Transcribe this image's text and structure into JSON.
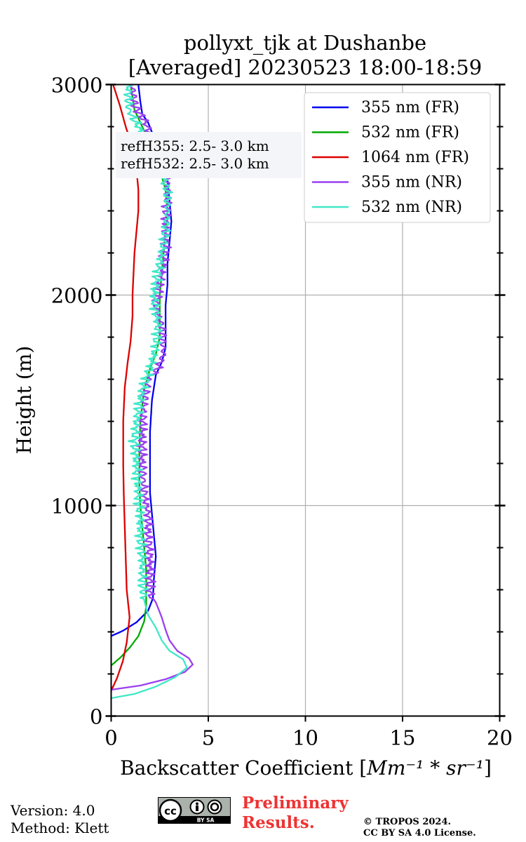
{
  "chart_data": {
    "type": "line",
    "title_line1": "pollyxt_tjk at Dushanbe",
    "title_line2": "[Averaged] 20230523 18:00-18:59",
    "xlabel_prefix": "Backscatter Coefficient [",
    "xlabel_math": "Mm⁻¹ * sr⁻¹",
    "xlabel_suffix": "]",
    "ylabel": "Height (m)",
    "xlim": [
      0,
      20
    ],
    "ylim": [
      0,
      3000
    ],
    "xticks": [
      0,
      5,
      10,
      15,
      20
    ],
    "xtick_labels": [
      "0",
      "5",
      "10",
      "15",
      "20"
    ],
    "yticks": [
      0,
      1000,
      2000,
      3000
    ],
    "ytick_labels": [
      "0",
      "1000",
      "2000",
      "3000"
    ],
    "yminor_step": 200,
    "grid": true,
    "legend_position": "top-right",
    "ref_annotation": [
      "refH355:  2.5- 3.0 km",
      "refH532:  2.5- 3.0 km"
    ],
    "series": [
      {
        "name": "355 nm (FR)",
        "color": "#0000ee",
        "noisy": false,
        "points": [
          [
            0.0,
            380
          ],
          [
            0.6,
            405
          ],
          [
            1.3,
            445
          ],
          [
            1.9,
            500
          ],
          [
            2.15,
            560
          ],
          [
            2.2,
            650
          ],
          [
            2.3,
            760
          ],
          [
            2.2,
            860
          ],
          [
            2.1,
            960
          ],
          [
            2.0,
            1060
          ],
          [
            2.0,
            1200
          ],
          [
            2.0,
            1350
          ],
          [
            2.1,
            1500
          ],
          [
            2.3,
            1620
          ],
          [
            2.6,
            1680
          ],
          [
            2.8,
            1750
          ],
          [
            2.8,
            1850
          ],
          [
            2.8,
            1950
          ],
          [
            2.9,
            2050
          ],
          [
            2.9,
            2150
          ],
          [
            3.0,
            2250
          ],
          [
            3.1,
            2350
          ],
          [
            3.0,
            2450
          ],
          [
            2.9,
            2550
          ],
          [
            2.6,
            2650
          ],
          [
            2.2,
            2750
          ],
          [
            1.9,
            2820
          ],
          [
            1.6,
            2860
          ],
          [
            1.5,
            2920
          ],
          [
            1.4,
            3000
          ]
        ]
      },
      {
        "name": "532 nm (FR)",
        "color": "#00aa00",
        "noisy": false,
        "points": [
          [
            0.0,
            240
          ],
          [
            0.5,
            280
          ],
          [
            1.0,
            330
          ],
          [
            1.4,
            380
          ],
          [
            1.7,
            450
          ],
          [
            1.8,
            520
          ],
          [
            1.8,
            600
          ],
          [
            1.8,
            700
          ],
          [
            1.7,
            800
          ],
          [
            1.6,
            900
          ],
          [
            1.5,
            1000
          ],
          [
            1.45,
            1100
          ],
          [
            1.45,
            1250
          ],
          [
            1.5,
            1400
          ],
          [
            1.7,
            1550
          ],
          [
            2.0,
            1650
          ],
          [
            2.3,
            1720
          ],
          [
            2.5,
            1800
          ],
          [
            2.5,
            1900
          ],
          [
            2.5,
            2000
          ],
          [
            2.6,
            2100
          ],
          [
            2.7,
            2200
          ],
          [
            2.8,
            2300
          ],
          [
            2.9,
            2400
          ],
          [
            2.8,
            2500
          ],
          [
            2.5,
            2600
          ],
          [
            2.1,
            2700
          ],
          [
            1.6,
            2800
          ],
          [
            1.2,
            2880
          ],
          [
            1.0,
            3000
          ]
        ]
      },
      {
        "name": "1064 nm (FR)",
        "color": "#dd0000",
        "noisy": false,
        "points": [
          [
            0.0,
            120
          ],
          [
            0.3,
            180
          ],
          [
            0.6,
            260
          ],
          [
            0.8,
            350
          ],
          [
            0.95,
            470
          ],
          [
            0.8,
            600
          ],
          [
            0.75,
            750
          ],
          [
            0.7,
            900
          ],
          [
            0.65,
            1050
          ],
          [
            0.62,
            1200
          ],
          [
            0.62,
            1400
          ],
          [
            0.7,
            1560
          ],
          [
            0.85,
            1680
          ],
          [
            1.0,
            1780
          ],
          [
            1.1,
            1900
          ],
          [
            1.1,
            2000
          ],
          [
            1.15,
            2100
          ],
          [
            1.2,
            2200
          ],
          [
            1.3,
            2300
          ],
          [
            1.4,
            2400
          ],
          [
            1.4,
            2500
          ],
          [
            1.3,
            2600
          ],
          [
            1.1,
            2700
          ],
          [
            0.75,
            2800
          ],
          [
            0.45,
            2900
          ],
          [
            0.1,
            3000
          ]
        ]
      },
      {
        "name": "355 nm (NR)",
        "color": "#9a3ff0",
        "noisy": true,
        "points": [
          [
            0.0,
            125
          ],
          [
            1.5,
            145
          ],
          [
            2.8,
            175
          ],
          [
            3.8,
            210
          ],
          [
            4.2,
            245
          ],
          [
            4.0,
            275
          ],
          [
            3.4,
            310
          ],
          [
            3.0,
            360
          ],
          [
            2.8,
            410
          ],
          [
            2.6,
            470
          ],
          [
            2.3,
            540
          ],
          [
            2.0,
            580
          ],
          [
            2.0,
            650
          ],
          [
            2.0,
            750
          ],
          [
            1.9,
            850
          ],
          [
            1.9,
            960
          ],
          [
            1.7,
            1060
          ],
          [
            1.6,
            1200
          ],
          [
            1.6,
            1350
          ],
          [
            1.7,
            1500
          ],
          [
            1.9,
            1600
          ],
          [
            2.4,
            1650
          ],
          [
            2.7,
            1720
          ],
          [
            2.6,
            1850
          ],
          [
            2.3,
            1950
          ],
          [
            2.5,
            2050
          ],
          [
            2.7,
            2150
          ],
          [
            2.8,
            2250
          ],
          [
            2.8,
            2350
          ],
          [
            2.9,
            2450
          ],
          [
            2.9,
            2550
          ],
          [
            2.5,
            2650
          ],
          [
            2.1,
            2750
          ],
          [
            1.7,
            2830
          ],
          [
            1.2,
            2900
          ],
          [
            1.1,
            3000
          ]
        ]
      },
      {
        "name": "532 nm (NR)",
        "color": "#40e8c8",
        "noisy": true,
        "points": [
          [
            0.0,
            85
          ],
          [
            1.2,
            105
          ],
          [
            2.3,
            140
          ],
          [
            3.3,
            185
          ],
          [
            3.9,
            230
          ],
          [
            3.7,
            270
          ],
          [
            3.0,
            310
          ],
          [
            2.6,
            360
          ],
          [
            2.3,
            420
          ],
          [
            1.9,
            480
          ],
          [
            1.7,
            550
          ],
          [
            1.6,
            650
          ],
          [
            1.6,
            750
          ],
          [
            1.5,
            850
          ],
          [
            1.5,
            950
          ],
          [
            1.4,
            1050
          ],
          [
            1.3,
            1200
          ],
          [
            1.2,
            1300
          ],
          [
            1.3,
            1400
          ],
          [
            1.6,
            1550
          ],
          [
            2.0,
            1650
          ],
          [
            2.3,
            1750
          ],
          [
            2.4,
            1850
          ],
          [
            2.2,
            2000
          ],
          [
            2.4,
            2100
          ],
          [
            2.6,
            2200
          ],
          [
            2.8,
            2300
          ],
          [
            2.9,
            2400
          ],
          [
            2.9,
            2500
          ],
          [
            2.5,
            2600
          ],
          [
            2.1,
            2700
          ],
          [
            1.4,
            2800
          ],
          [
            0.9,
            2880
          ],
          [
            0.9,
            3000
          ]
        ]
      }
    ]
  },
  "footer": {
    "version_line": "Version: 4.0",
    "method_line": "Method: Klett",
    "preliminary_line1": "Preliminary",
    "preliminary_line2": "Results.",
    "copyright_line1": "© TROPOS 2024.",
    "copyright_line2": "CC BY SA 4.0 License.",
    "license_badge_text": "BY SA"
  }
}
